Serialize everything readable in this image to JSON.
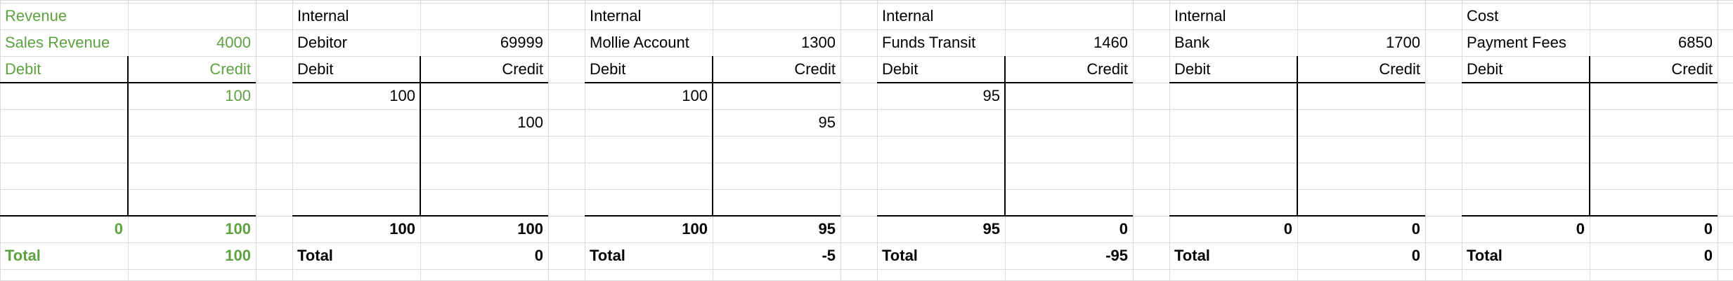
{
  "colors": {
    "revenue": "#5ea141",
    "internal": "#000000",
    "cost": "#ff0000",
    "gridline": "#dadada"
  },
  "accounts": [
    {
      "key": "revenue",
      "group": "Revenue",
      "name": "Sales Revenue",
      "number": "4000",
      "debit_label": "Debit",
      "credit_label": "Credit",
      "rows": [
        [
          "",
          "100"
        ],
        [
          "",
          ""
        ],
        [
          "",
          ""
        ],
        [
          "",
          ""
        ],
        [
          "",
          ""
        ]
      ],
      "sum_debit": "0",
      "sum_credit": "100",
      "total_label": "Total",
      "total_value": "100"
    },
    {
      "key": "debitor",
      "group": "Internal",
      "name": "Debitor",
      "number": "69999",
      "debit_label": "Debit",
      "credit_label": "Credit",
      "rows": [
        [
          "100",
          ""
        ],
        [
          "",
          "100"
        ],
        [
          "",
          ""
        ],
        [
          "",
          ""
        ],
        [
          "",
          ""
        ]
      ],
      "sum_debit": "100",
      "sum_credit": "100",
      "total_label": "Total",
      "total_value": "0"
    },
    {
      "key": "mollie",
      "group": "Internal",
      "name": "Mollie Account",
      "number": "1300",
      "debit_label": "Debit",
      "credit_label": "Credit",
      "rows": [
        [
          "100",
          ""
        ],
        [
          "",
          "95"
        ],
        [
          "",
          ""
        ],
        [
          "",
          ""
        ],
        [
          "",
          ""
        ]
      ],
      "sum_debit": "100",
      "sum_credit": "95",
      "total_label": "Total",
      "total_value": "-5"
    },
    {
      "key": "funds",
      "group": "Internal",
      "name": "Funds Transit",
      "number": "1460",
      "debit_label": "Debit",
      "credit_label": "Credit",
      "rows": [
        [
          "95",
          ""
        ],
        [
          "",
          ""
        ],
        [
          "",
          ""
        ],
        [
          "",
          ""
        ],
        [
          "",
          ""
        ]
      ],
      "sum_debit": "95",
      "sum_credit": "0",
      "total_label": "Total",
      "total_value": "-95"
    },
    {
      "key": "bank",
      "group": "Internal",
      "name": "Bank",
      "number": "1700",
      "debit_label": "Debit",
      "credit_label": "Credit",
      "rows": [
        [
          "",
          ""
        ],
        [
          "",
          ""
        ],
        [
          "",
          ""
        ],
        [
          "",
          ""
        ],
        [
          "",
          ""
        ]
      ],
      "sum_debit": "0",
      "sum_credit": "0",
      "total_label": "Total",
      "total_value": "0"
    },
    {
      "key": "fees",
      "group": "Cost",
      "name": "Payment Fees",
      "number": "6850",
      "debit_label": "Debit",
      "credit_label": "Credit",
      "rows": [
        [
          "",
          ""
        ],
        [
          "",
          ""
        ],
        [
          "",
          ""
        ],
        [
          "",
          ""
        ],
        [
          "",
          ""
        ]
      ],
      "sum_debit": "0",
      "sum_credit": "0",
      "total_label": "Total",
      "total_value": "0"
    }
  ]
}
